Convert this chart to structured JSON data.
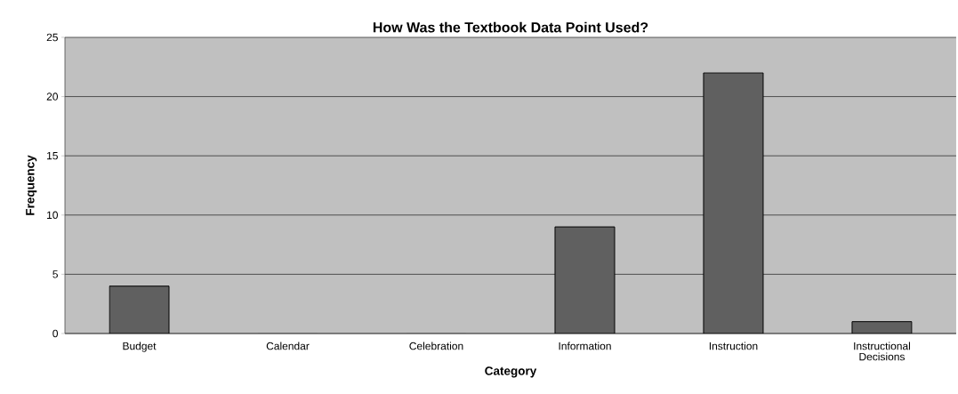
{
  "chart_data": {
    "type": "bar",
    "title": "How Was the Textbook Data Point Used?",
    "xlabel": "Category",
    "ylabel": "Frequency",
    "categories": [
      "Budget",
      "Calendar",
      "Celebration",
      "Information",
      "Instruction",
      "Instructional Decisions"
    ],
    "values": [
      4,
      0,
      0,
      9,
      22,
      1
    ],
    "color": "#606060",
    "ylim": [
      0,
      25
    ],
    "yticks": [
      0,
      5,
      10,
      15,
      20,
      25
    ],
    "grid": "y"
  }
}
